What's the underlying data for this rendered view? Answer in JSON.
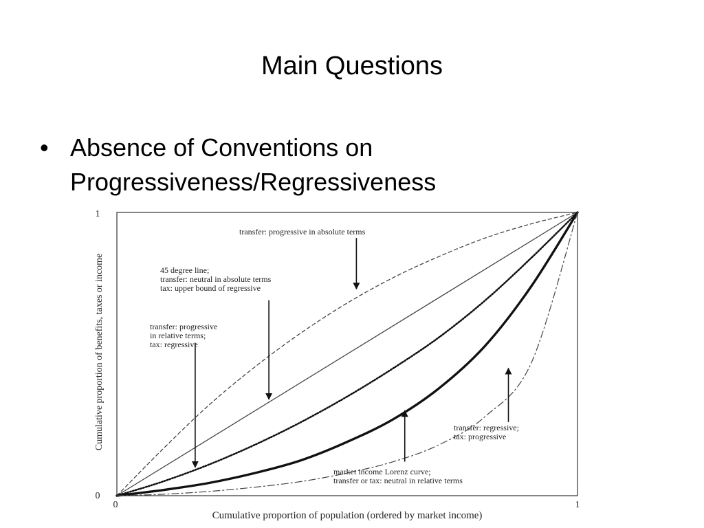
{
  "slide": {
    "title": "Main Questions",
    "bullet_glyph": "•",
    "bullet_lines": [
      "Absence of Conventions on",
      "Progressiveness/Regressiveness"
    ]
  },
  "chart_data": {
    "type": "line",
    "xlabel": "Cumulative proportion of population (ordered by market income)",
    "ylabel": "Cumulative proportion of benefits, taxes or income",
    "xlim": [
      0,
      1
    ],
    "ylim": [
      0,
      1
    ],
    "x_ticks": [
      "0",
      "1"
    ],
    "y_ticks": [
      "0",
      "1"
    ],
    "grid": false,
    "legend": "none",
    "colors": {
      "line": "#111111",
      "light_line": "#444444"
    },
    "series": [
      {
        "style": "dashed",
        "x": [
          0,
          0.1,
          0.2,
          0.3,
          0.4,
          0.5,
          0.6,
          0.7,
          0.8,
          0.9,
          1
        ],
        "y": [
          0,
          0.165,
          0.32,
          0.455,
          0.575,
          0.68,
          0.77,
          0.845,
          0.91,
          0.96,
          1
        ]
      },
      {
        "style": "thin-solid",
        "x": [
          0,
          1
        ],
        "y": [
          0,
          1
        ]
      },
      {
        "style": "dotted",
        "x": [
          0,
          0.1,
          0.2,
          0.3,
          0.4,
          0.5,
          0.6,
          0.7,
          0.8,
          0.9,
          1
        ],
        "y": [
          0,
          0.05,
          0.11,
          0.18,
          0.26,
          0.35,
          0.45,
          0.56,
          0.69,
          0.84,
          1
        ]
      },
      {
        "style": "thick-solid",
        "x": [
          0,
          0.1,
          0.2,
          0.3,
          0.4,
          0.5,
          0.6,
          0.7,
          0.8,
          0.9,
          1
        ],
        "y": [
          0,
          0.02,
          0.045,
          0.08,
          0.125,
          0.19,
          0.27,
          0.38,
          0.53,
          0.74,
          1
        ]
      },
      {
        "style": "dash-dot",
        "x": [
          0,
          0.1,
          0.2,
          0.3,
          0.4,
          0.5,
          0.6,
          0.7,
          0.8,
          0.9,
          1
        ],
        "y": [
          0,
          0.005,
          0.015,
          0.03,
          0.05,
          0.08,
          0.12,
          0.18,
          0.28,
          0.47,
          1
        ]
      }
    ],
    "annotations": [
      {
        "lines": [
          "transfer: progressive in absolute terms"
        ],
        "arrow_from": [
          0.52,
          0.91
        ],
        "arrow_to": [
          0.52,
          0.73
        ]
      },
      {
        "lines": [
          "45 degree line;",
          "transfer: neutral in absolute terms",
          "tax: upper bound of regressive"
        ],
        "arrow_from": [
          0.33,
          0.69
        ],
        "arrow_to": [
          0.33,
          0.34
        ]
      },
      {
        "lines": [
          "transfer: progressive",
          "in relative terms;",
          "tax: regressive"
        ],
        "arrow_from": [
          0.17,
          0.54
        ],
        "arrow_to": [
          0.17,
          0.1
        ]
      },
      {
        "lines": [
          "transfer: regressive;",
          "tax: progressive"
        ],
        "arrow_from": [
          0.85,
          0.26
        ],
        "arrow_to": [
          0.85,
          0.45
        ]
      },
      {
        "lines": [
          "market income Lorenz curve;",
          "transfer or tax: neutral in relative terms"
        ],
        "arrow_from": [
          0.625,
          0.12
        ],
        "arrow_to": [
          0.625,
          0.3
        ]
      }
    ]
  }
}
